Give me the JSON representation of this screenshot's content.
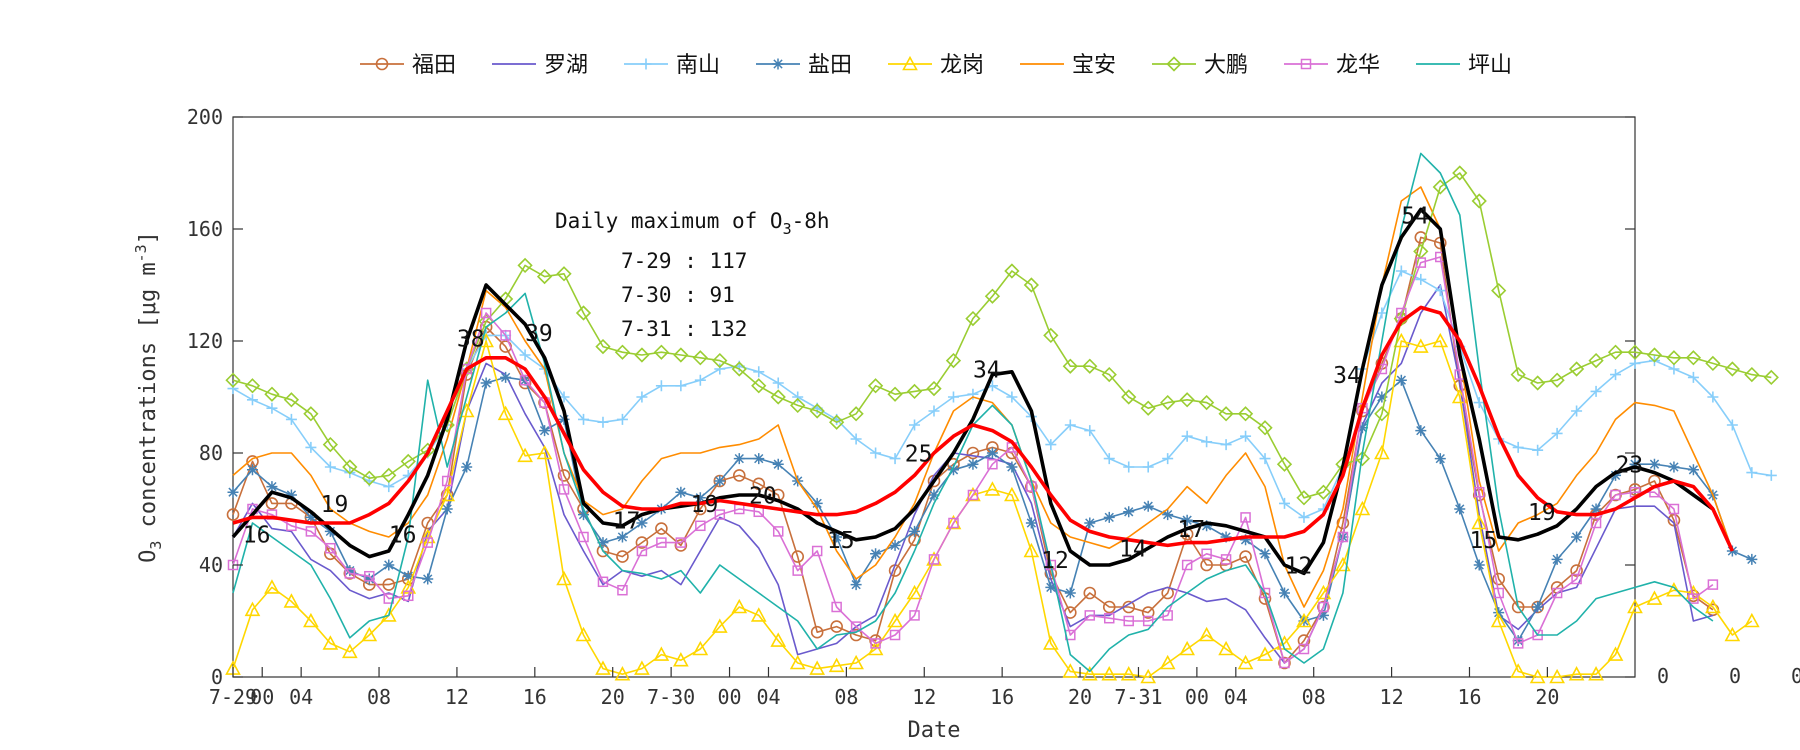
{
  "chart_data": {
    "type": "line",
    "title": "",
    "xlabel": "Date",
    "ylabel": "O3 concentrations [μg m-3]",
    "ylim": [
      0,
      200
    ],
    "yticks": [
      0,
      40,
      80,
      120,
      160,
      200
    ],
    "xlim": [
      0,
      72
    ],
    "xtick_labels": [
      {
        "x": 0,
        "label": "7-29"
      },
      {
        "x": 1.5,
        "label": "00"
      },
      {
        "x": 3.5,
        "label": "04"
      },
      {
        "x": 7.5,
        "label": "08"
      },
      {
        "x": 11.5,
        "label": "12"
      },
      {
        "x": 15.5,
        "label": "16"
      },
      {
        "x": 19.5,
        "label": "20"
      },
      {
        "x": 22.5,
        "label": "7-30"
      },
      {
        "x": 25.5,
        "label": "00"
      },
      {
        "x": 27.5,
        "label": "04"
      },
      {
        "x": 31.5,
        "label": "08"
      },
      {
        "x": 35.5,
        "label": "12"
      },
      {
        "x": 39.5,
        "label": "16"
      },
      {
        "x": 43.5,
        "label": "20"
      },
      {
        "x": 46.5,
        "label": "7-31"
      },
      {
        "x": 49.5,
        "label": "00"
      },
      {
        "x": 51.5,
        "label": "04"
      },
      {
        "x": 55.5,
        "label": "08"
      },
      {
        "x": 59.5,
        "label": "12"
      },
      {
        "x": 63.5,
        "label": "16"
      },
      {
        "x": 67.5,
        "label": "20"
      }
    ],
    "right_edge_labels": [
      "0",
      "0",
      "0"
    ],
    "grid": false,
    "legend_position": "top",
    "annotation": {
      "heading": "Daily maximum of O",
      "heading_sub": "3",
      "heading_tail": "-8h",
      "lines": [
        "7-29 : 117",
        "7-30 : 91",
        "7-31 : 132"
      ]
    },
    "peak_labels": [
      {
        "x": 0.5,
        "y": 48,
        "text": "16"
      },
      {
        "x": 4.5,
        "y": 59,
        "text": "19"
      },
      {
        "x": 8,
        "y": 48,
        "text": "16"
      },
      {
        "x": 11.5,
        "y": 118,
        "text": "38"
      },
      {
        "x": 15,
        "y": 120,
        "text": "39"
      },
      {
        "x": 19.5,
        "y": 53,
        "text": "17"
      },
      {
        "x": 23.5,
        "y": 59,
        "text": "19"
      },
      {
        "x": 26.5,
        "y": 62,
        "text": "20"
      },
      {
        "x": 30.5,
        "y": 46,
        "text": "15"
      },
      {
        "x": 34.5,
        "y": 77,
        "text": "25"
      },
      {
        "x": 38,
        "y": 107,
        "text": "34"
      },
      {
        "x": 41.5,
        "y": 39,
        "text": "12"
      },
      {
        "x": 45.5,
        "y": 43,
        "text": "14"
      },
      {
        "x": 48.5,
        "y": 50,
        "text": "17"
      },
      {
        "x": 54,
        "y": 37,
        "text": "12"
      },
      {
        "x": 56.5,
        "y": 105,
        "text": "34"
      },
      {
        "x": 60,
        "y": 162,
        "text": "54"
      },
      {
        "x": 63.5,
        "y": 46,
        "text": "15"
      },
      {
        "x": 66.5,
        "y": 56,
        "text": "19"
      },
      {
        "x": 71,
        "y": 73,
        "text": "23"
      }
    ],
    "series": [
      {
        "name": "福田",
        "color": "#c8703c",
        "marker": "circle",
        "values": [
          58,
          77,
          62,
          62,
          57,
          44,
          37,
          33,
          33,
          35,
          55,
          65,
          108,
          125,
          118,
          105,
          98,
          72,
          60,
          45,
          43,
          48,
          53,
          47,
          60,
          70,
          72,
          69,
          65,
          43,
          16,
          18,
          15,
          13,
          38,
          49,
          70,
          76,
          80,
          82,
          80,
          68,
          37,
          23,
          30,
          25,
          25,
          23,
          30,
          51,
          40,
          40,
          43,
          28,
          5,
          13,
          25,
          55,
          95,
          112,
          128,
          157,
          155,
          104,
          65,
          35,
          25,
          25,
          32,
          38,
          58,
          65,
          67,
          70,
          56,
          29,
          24
        ]
      },
      {
        "name": "罗湖",
        "color": "#6a5acd",
        "marker": "none",
        "values": [
          50,
          62,
          53,
          52,
          42,
          38,
          31,
          28,
          30,
          27,
          52,
          60,
          95,
          112,
          108,
          94,
          82,
          58,
          45,
          33,
          38,
          36,
          38,
          33,
          45,
          57,
          54,
          46,
          33,
          8,
          10,
          12,
          18,
          22,
          40,
          58,
          72,
          80,
          79,
          78,
          76,
          62,
          35,
          18,
          22,
          22,
          26,
          30,
          32,
          30,
          27,
          28,
          24,
          14,
          5,
          10,
          25,
          50,
          90,
          105,
          112,
          130,
          140,
          105,
          58,
          22,
          17,
          24,
          30,
          32,
          46,
          60,
          61,
          61,
          55,
          20,
          22
        ]
      },
      {
        "name": "南山",
        "color": "#87cefa",
        "marker": "plus",
        "values": [
          103,
          99,
          96,
          92,
          82,
          75,
          73,
          70,
          68,
          72,
          80,
          90,
          110,
          122,
          122,
          115,
          110,
          100,
          92,
          91,
          92,
          100,
          104,
          104,
          106,
          110,
          111,
          109,
          105,
          100,
          96,
          92,
          85,
          80,
          78,
          90,
          95,
          100,
          101,
          104,
          100,
          93,
          83,
          90,
          88,
          78,
          75,
          75,
          78,
          86,
          84,
          83,
          86,
          78,
          62,
          57,
          60,
          75,
          110,
          130,
          145,
          142,
          138,
          118,
          98,
          85,
          82,
          81,
          87,
          95,
          102,
          108,
          112,
          113,
          110,
          107,
          100,
          90,
          73,
          72
        ]
      },
      {
        "name": "盐田",
        "color": "#4682b4",
        "marker": "star",
        "values": [
          66,
          74,
          68,
          65,
          57,
          52,
          38,
          35,
          40,
          36,
          35,
          60,
          75,
          105,
          107,
          106,
          88,
          92,
          58,
          48,
          50,
          55,
          60,
          66,
          64,
          70,
          78,
          78,
          76,
          70,
          62,
          50,
          33,
          44,
          47,
          52,
          65,
          74,
          76,
          80,
          75,
          55,
          32,
          30,
          55,
          57,
          59,
          61,
          58,
          56,
          54,
          50,
          49,
          44,
          30,
          20,
          22,
          50,
          89,
          100,
          106,
          88,
          78,
          60,
          40,
          23,
          13,
          25,
          42,
          50,
          60,
          72,
          76,
          76,
          75,
          74,
          65,
          45,
          42
        ]
      },
      {
        "name": "龙岗",
        "color": "#ffd700",
        "marker": "triangle",
        "values": [
          3,
          24,
          32,
          27,
          20,
          12,
          9,
          15,
          22,
          32,
          50,
          65,
          95,
          120,
          94,
          79,
          80,
          35,
          15,
          3,
          1,
          3,
          8,
          6,
          10,
          18,
          25,
          22,
          13,
          5,
          3,
          4,
          5,
          10,
          20,
          30,
          42,
          55,
          65,
          67,
          65,
          45,
          12,
          2,
          1,
          1,
          1,
          0,
          5,
          10,
          15,
          10,
          5,
          8,
          12,
          20,
          30,
          40,
          60,
          80,
          120,
          118,
          120,
          100,
          55,
          20,
          2,
          0,
          0,
          1,
          1,
          8,
          25,
          28,
          31,
          30,
          25,
          15,
          20
        ]
      },
      {
        "name": "宝安",
        "color": "#ff8c00",
        "marker": "none",
        "values": [
          72,
          78,
          80,
          80,
          72,
          60,
          55,
          52,
          50,
          55,
          65,
          85,
          110,
          138,
          132,
          120,
          110,
          80,
          63,
          58,
          60,
          70,
          78,
          80,
          80,
          82,
          83,
          85,
          90,
          70,
          60,
          45,
          35,
          40,
          50,
          62,
          80,
          95,
          100,
          98,
          90,
          70,
          55,
          50,
          48,
          46,
          50,
          55,
          60,
          68,
          62,
          72,
          80,
          68,
          40,
          25,
          38,
          60,
          100,
          140,
          170,
          175,
          160,
          115,
          70,
          45,
          55,
          58,
          62,
          72,
          80,
          92,
          98,
          97,
          95,
          80,
          65,
          45
        ]
      },
      {
        "name": "大鹏",
        "color": "#9acd32",
        "marker": "diamond",
        "values": [
          106,
          104,
          101,
          99,
          94,
          83,
          75,
          71,
          72,
          77,
          81,
          90,
          110,
          127,
          135,
          147,
          143,
          144,
          130,
          118,
          116,
          115,
          116,
          115,
          114,
          113,
          110,
          104,
          100,
          97,
          95,
          91,
          94,
          104,
          101,
          102,
          103,
          113,
          128,
          136,
          145,
          140,
          122,
          111,
          111,
          108,
          100,
          96,
          98,
          99,
          98,
          94,
          94,
          89,
          76,
          64,
          66,
          76,
          78,
          94,
          128,
          152,
          175,
          180,
          170,
          138,
          108,
          105,
          106,
          110,
          113,
          116,
          116,
          115,
          114,
          114,
          112,
          110,
          108,
          107
        ]
      },
      {
        "name": "龙华",
        "color": "#da70d6",
        "marker": "square",
        "values": [
          40,
          60,
          58,
          54,
          52,
          46,
          37,
          36,
          28,
          29,
          48,
          70,
          110,
          130,
          122,
          106,
          98,
          67,
          50,
          34,
          31,
          45,
          48,
          48,
          54,
          58,
          60,
          59,
          52,
          38,
          45,
          25,
          18,
          12,
          15,
          22,
          42,
          55,
          65,
          76,
          82,
          68,
          40,
          15,
          22,
          21,
          20,
          20,
          22,
          40,
          44,
          42,
          57,
          30,
          5,
          10,
          25,
          50,
          96,
          110,
          130,
          148,
          150,
          108,
          66,
          30,
          12,
          15,
          30,
          35,
          55,
          65,
          66,
          66,
          60,
          28,
          33
        ]
      },
      {
        "name": "坪山",
        "color": "#20b2aa",
        "marker": "none",
        "values": [
          30,
          55,
          50,
          45,
          40,
          28,
          14,
          20,
          22,
          50,
          106,
          75,
          100,
          125,
          130,
          137,
          112,
          80,
          60,
          45,
          38,
          37,
          35,
          38,
          30,
          40,
          35,
          30,
          25,
          20,
          10,
          15,
          16,
          20,
          30,
          45,
          62,
          75,
          90,
          97,
          90,
          70,
          40,
          8,
          2,
          10,
          15,
          17,
          25,
          30,
          35,
          38,
          40,
          30,
          10,
          5,
          10,
          30,
          80,
          120,
          160,
          187,
          180,
          165,
          110,
          60,
          25,
          15,
          15,
          20,
          28,
          30,
          32,
          34,
          32,
          25,
          20
        ]
      },
      {
        "name": "",
        "color": "#000000",
        "marker": "none",
        "values": [
          50,
          58,
          66,
          64,
          59,
          53,
          47,
          43,
          45,
          58,
          72,
          92,
          120,
          140,
          133,
          126,
          114,
          95,
          62,
          55,
          54,
          58,
          60,
          61,
          62,
          64,
          65,
          65,
          63,
          60,
          55,
          52,
          49,
          50,
          53,
          60,
          70,
          80,
          92,
          108,
          109,
          95,
          62,
          45,
          40,
          40,
          42,
          46,
          50,
          53,
          55,
          54,
          52,
          50,
          40,
          37,
          48,
          75,
          110,
          140,
          157,
          167,
          160,
          115,
          85,
          50,
          49,
          51,
          54,
          60,
          68,
          73,
          75,
          73,
          70,
          65,
          60
        ]
      },
      {
        "name": "",
        "color": "#ff0000",
        "marker": "none",
        "values": [
          55,
          57,
          57,
          56,
          55,
          55,
          55,
          58,
          62,
          70,
          80,
          95,
          110,
          114,
          114,
          110,
          100,
          87,
          74,
          66,
          61,
          60,
          60,
          62,
          62,
          63,
          62,
          61,
          60,
          59,
          58,
          58,
          59,
          62,
          66,
          72,
          80,
          86,
          90,
          88,
          84,
          75,
          65,
          56,
          52,
          50,
          49,
          48,
          47,
          48,
          48,
          49,
          50,
          50,
          50,
          52,
          58,
          72,
          96,
          115,
          127,
          132,
          130,
          120,
          104,
          86,
          72,
          64,
          59,
          58,
          58,
          60,
          64,
          68,
          70,
          68,
          60,
          45
        ]
      }
    ]
  }
}
